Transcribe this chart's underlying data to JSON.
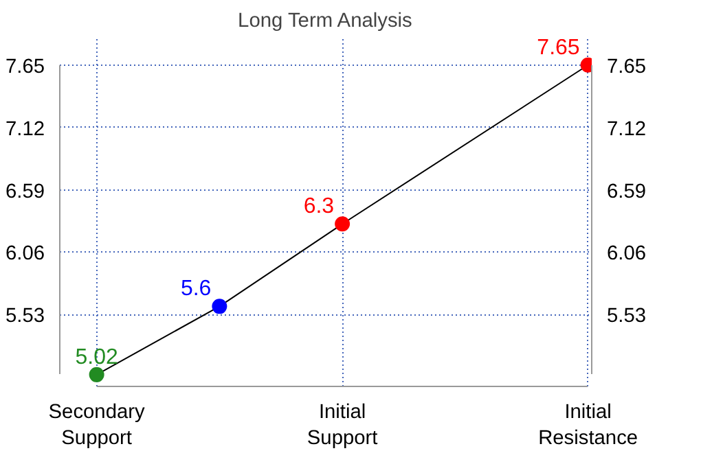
{
  "chart_data": {
    "type": "line",
    "title": "Long Term Analysis",
    "categories": [
      "Secondary\nSupport",
      null,
      "Initial\nSupport",
      null,
      "Initial\nResistance"
    ],
    "values": [
      5.02,
      5.6,
      6.3,
      null,
      7.65
    ],
    "color": "#000000",
    "colors": [
      "#228b22",
      "#0000ff",
      "#ff0000",
      null,
      "#ff0000"
    ],
    "marker": "circle",
    "data_labels": true,
    "ylim": [
      5.02,
      7.65
    ],
    "yticks": [
      5.53,
      6.06,
      6.59,
      7.12,
      7.65
    ],
    "y2lim": [
      5.02,
      7.65
    ],
    "y2ticks": [
      5.53,
      6.06,
      6.59,
      7.12,
      7.65
    ],
    "grid": true
  }
}
